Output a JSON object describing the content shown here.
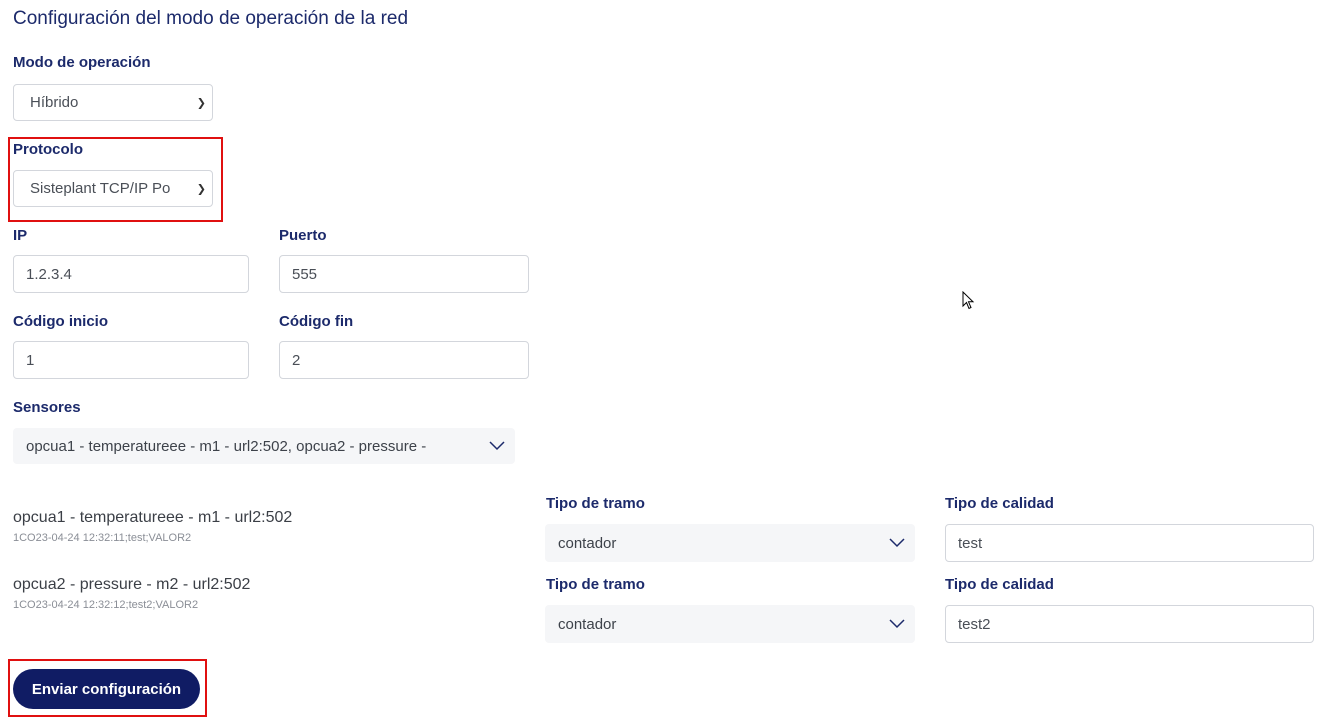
{
  "title": "Configuración del modo de operación de la red",
  "modo": {
    "label": "Modo de operación",
    "value": "Híbrido"
  },
  "protocolo": {
    "label": "Protocolo",
    "value": "Sisteplant TCP/IP Po"
  },
  "ip": {
    "label": "IP",
    "value": "1.2.3.4"
  },
  "puerto": {
    "label": "Puerto",
    "value": "555"
  },
  "codigo_inicio": {
    "label": "Código inicio",
    "value": "1"
  },
  "codigo_fin": {
    "label": "Código fin",
    "value": "2"
  },
  "sensores": {
    "label": "Sensores",
    "value": "opcua1 - temperatureee - m1 - url2:502, opcua2 - pressure -"
  },
  "sensor_rows": [
    {
      "name": "opcua1 - temperatureee - m1 - url2:502",
      "detail": "1CO23-04-24 12:32:11;test;VALOR2",
      "tramo_label": "Tipo de tramo",
      "tramo_value": "contador",
      "calidad_label": "Tipo de calidad",
      "calidad_value": "test"
    },
    {
      "name": "opcua2 - pressure - m2 - url2:502",
      "detail": "1CO23-04-24 12:32:12;test2;VALOR2",
      "tramo_label": "Tipo de tramo",
      "tramo_value": "contador",
      "calidad_label": "Tipo de calidad",
      "calidad_value": "test2"
    }
  ],
  "submit_label": "Enviar configuración",
  "colors": {
    "primary": "#101c64",
    "heading": "#1c2a6b",
    "highlight": "#e01010"
  }
}
